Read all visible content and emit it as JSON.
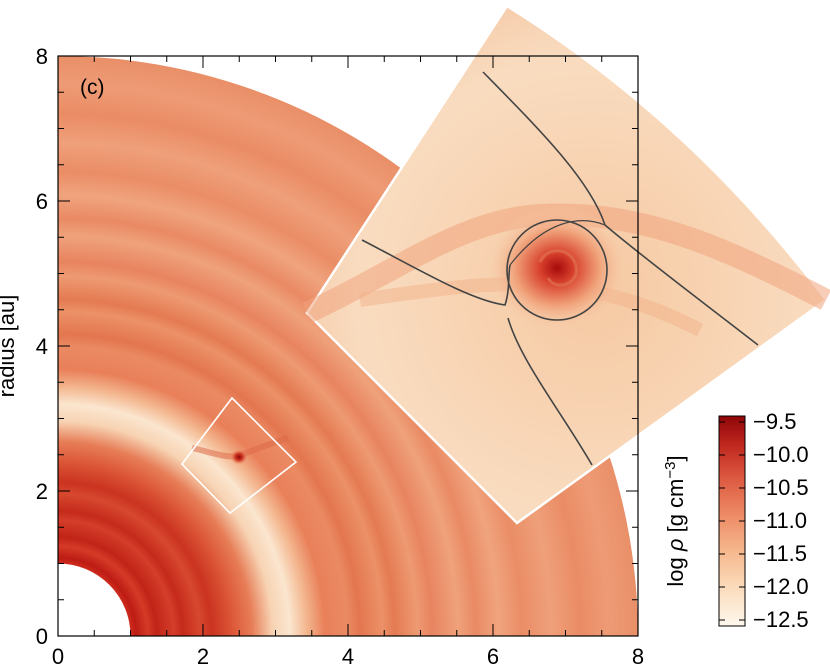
{
  "chart_data": {
    "type": "heatmap",
    "panel_label": "(c)",
    "ylabel": "radius [au]",
    "xlabel": "",
    "xlim": [
      0,
      8
    ],
    "ylim": [
      0,
      8
    ],
    "x_ticks": [
      "0",
      "2",
      "4",
      "6",
      "8"
    ],
    "y_ticks": [
      "0",
      "2",
      "4",
      "6",
      "8"
    ],
    "disk_inner_radius": 1,
    "disk_outer_radius": 8,
    "planet_position": [
      2.5,
      2.5
    ],
    "zoom_box": {
      "r_range": [
        2.0,
        3.0
      ],
      "phi_range_deg": [
        36,
        54
      ]
    },
    "colorbar": {
      "label_main": "log ",
      "label_symbol": "ρ",
      "label_unit_left": "  [g cm",
      "label_exponent": "−3",
      "label_unit_right": "]",
      "range": [
        -12.5,
        -9.5
      ],
      "ticks": [
        "−9.5",
        "−10.0",
        "−10.5",
        "−11.0",
        "−11.5",
        "−12.0",
        "−12.5"
      ],
      "colors": [
        "#fff8ee",
        "#fbdcbc",
        "#f6b98f",
        "#ee8d67",
        "#dd5a42",
        "#c0281f",
        "#8f0508"
      ]
    }
  }
}
